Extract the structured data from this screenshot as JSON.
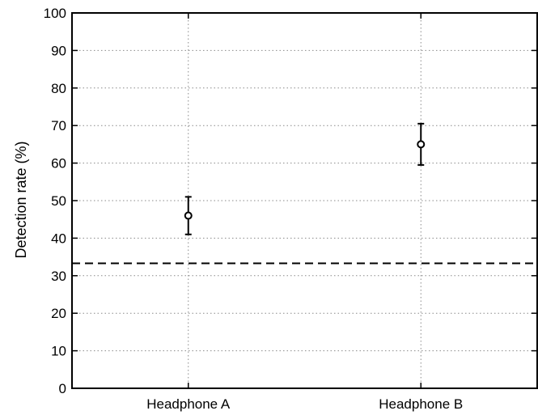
{
  "chart_data": {
    "type": "scatter",
    "title": "",
    "xlabel": "",
    "ylabel": "Detection rate (%)",
    "categories": [
      "Headphone A",
      "Headphone B"
    ],
    "points": [
      {
        "category": "Headphone A",
        "value": 46,
        "err_low": 41,
        "err_high": 51
      },
      {
        "category": "Headphone B",
        "value": 65,
        "err_low": 59.5,
        "err_high": 70.5
      }
    ],
    "reference_line": {
      "value": 33.3,
      "style": "dashed"
    },
    "ylim": [
      0,
      100
    ],
    "yticks": [
      "0",
      "10",
      "20",
      "30",
      "40",
      "50",
      "60",
      "70",
      "80",
      "90",
      "100"
    ],
    "grid": true,
    "grid_style": "dotted",
    "legend": "none",
    "colors": {
      "marker": "#000000",
      "grid": "#8a8a8a",
      "axis": "#000000"
    }
  }
}
